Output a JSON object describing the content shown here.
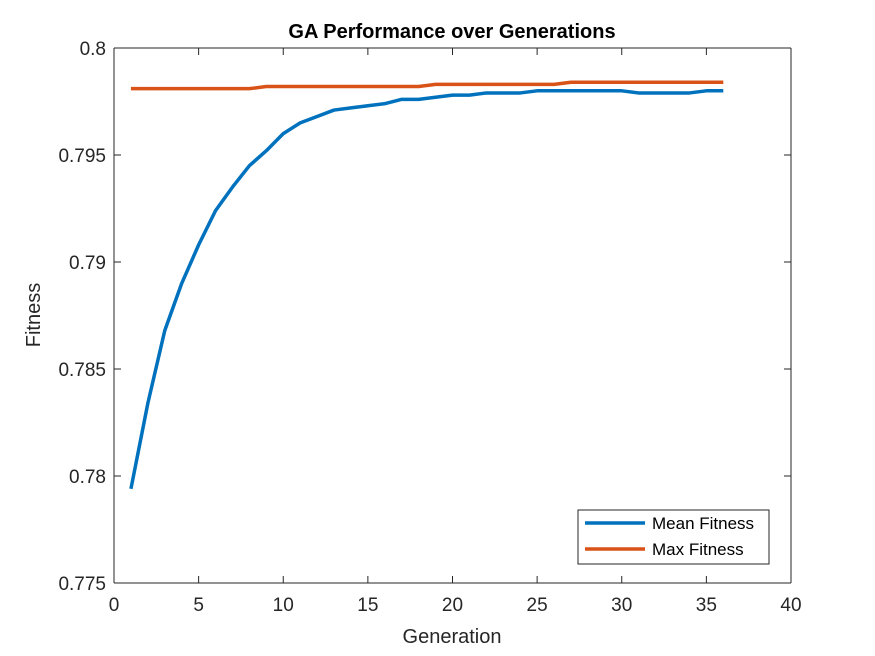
{
  "chart_data": {
    "type": "line",
    "title": "GA Performance over Generations",
    "xlabel": "Generation",
    "ylabel": "Fitness",
    "xlim": [
      0,
      40
    ],
    "ylim": [
      0.775,
      0.8
    ],
    "xticks": [
      0,
      5,
      10,
      15,
      20,
      25,
      30,
      35,
      40
    ],
    "xtick_labels": [
      "0",
      "5",
      "10",
      "15",
      "20",
      "25",
      "30",
      "35",
      "40"
    ],
    "yticks": [
      0.775,
      0.78,
      0.785,
      0.79,
      0.795,
      0.8
    ],
    "ytick_labels": [
      "0.775",
      "0.78",
      "0.785",
      "0.79",
      "0.795",
      "0.8"
    ],
    "grid": false,
    "legend_position": "bottom-right",
    "x": [
      1,
      2,
      3,
      4,
      5,
      6,
      7,
      8,
      9,
      10,
      11,
      12,
      13,
      14,
      15,
      16,
      17,
      18,
      19,
      20,
      21,
      22,
      23,
      24,
      25,
      26,
      27,
      28,
      29,
      30,
      31,
      32,
      33,
      34,
      35,
      36
    ],
    "series": [
      {
        "name": "Mean Fitness",
        "color": "#0072BD",
        "values": [
          0.7794,
          0.7834,
          0.7868,
          0.789,
          0.7908,
          0.7924,
          0.7935,
          0.7945,
          0.7952,
          0.796,
          0.7965,
          0.7968,
          0.7971,
          0.7972,
          0.7973,
          0.7974,
          0.7976,
          0.7976,
          0.7977,
          0.7978,
          0.7978,
          0.7979,
          0.7979,
          0.7979,
          0.798,
          0.798,
          0.798,
          0.798,
          0.798,
          0.798,
          0.7979,
          0.7979,
          0.7979,
          0.7979,
          0.798,
          0.798
        ]
      },
      {
        "name": "Max Fitness",
        "color": "#D95319",
        "values": [
          0.7981,
          0.7981,
          0.7981,
          0.7981,
          0.7981,
          0.7981,
          0.7981,
          0.7981,
          0.7982,
          0.7982,
          0.7982,
          0.7982,
          0.7982,
          0.7982,
          0.7982,
          0.7982,
          0.7982,
          0.7982,
          0.7983,
          0.7983,
          0.7983,
          0.7983,
          0.7983,
          0.7983,
          0.7983,
          0.7983,
          0.7984,
          0.7984,
          0.7984,
          0.7984,
          0.7984,
          0.7984,
          0.7984,
          0.7984,
          0.7984,
          0.7984
        ]
      }
    ]
  }
}
